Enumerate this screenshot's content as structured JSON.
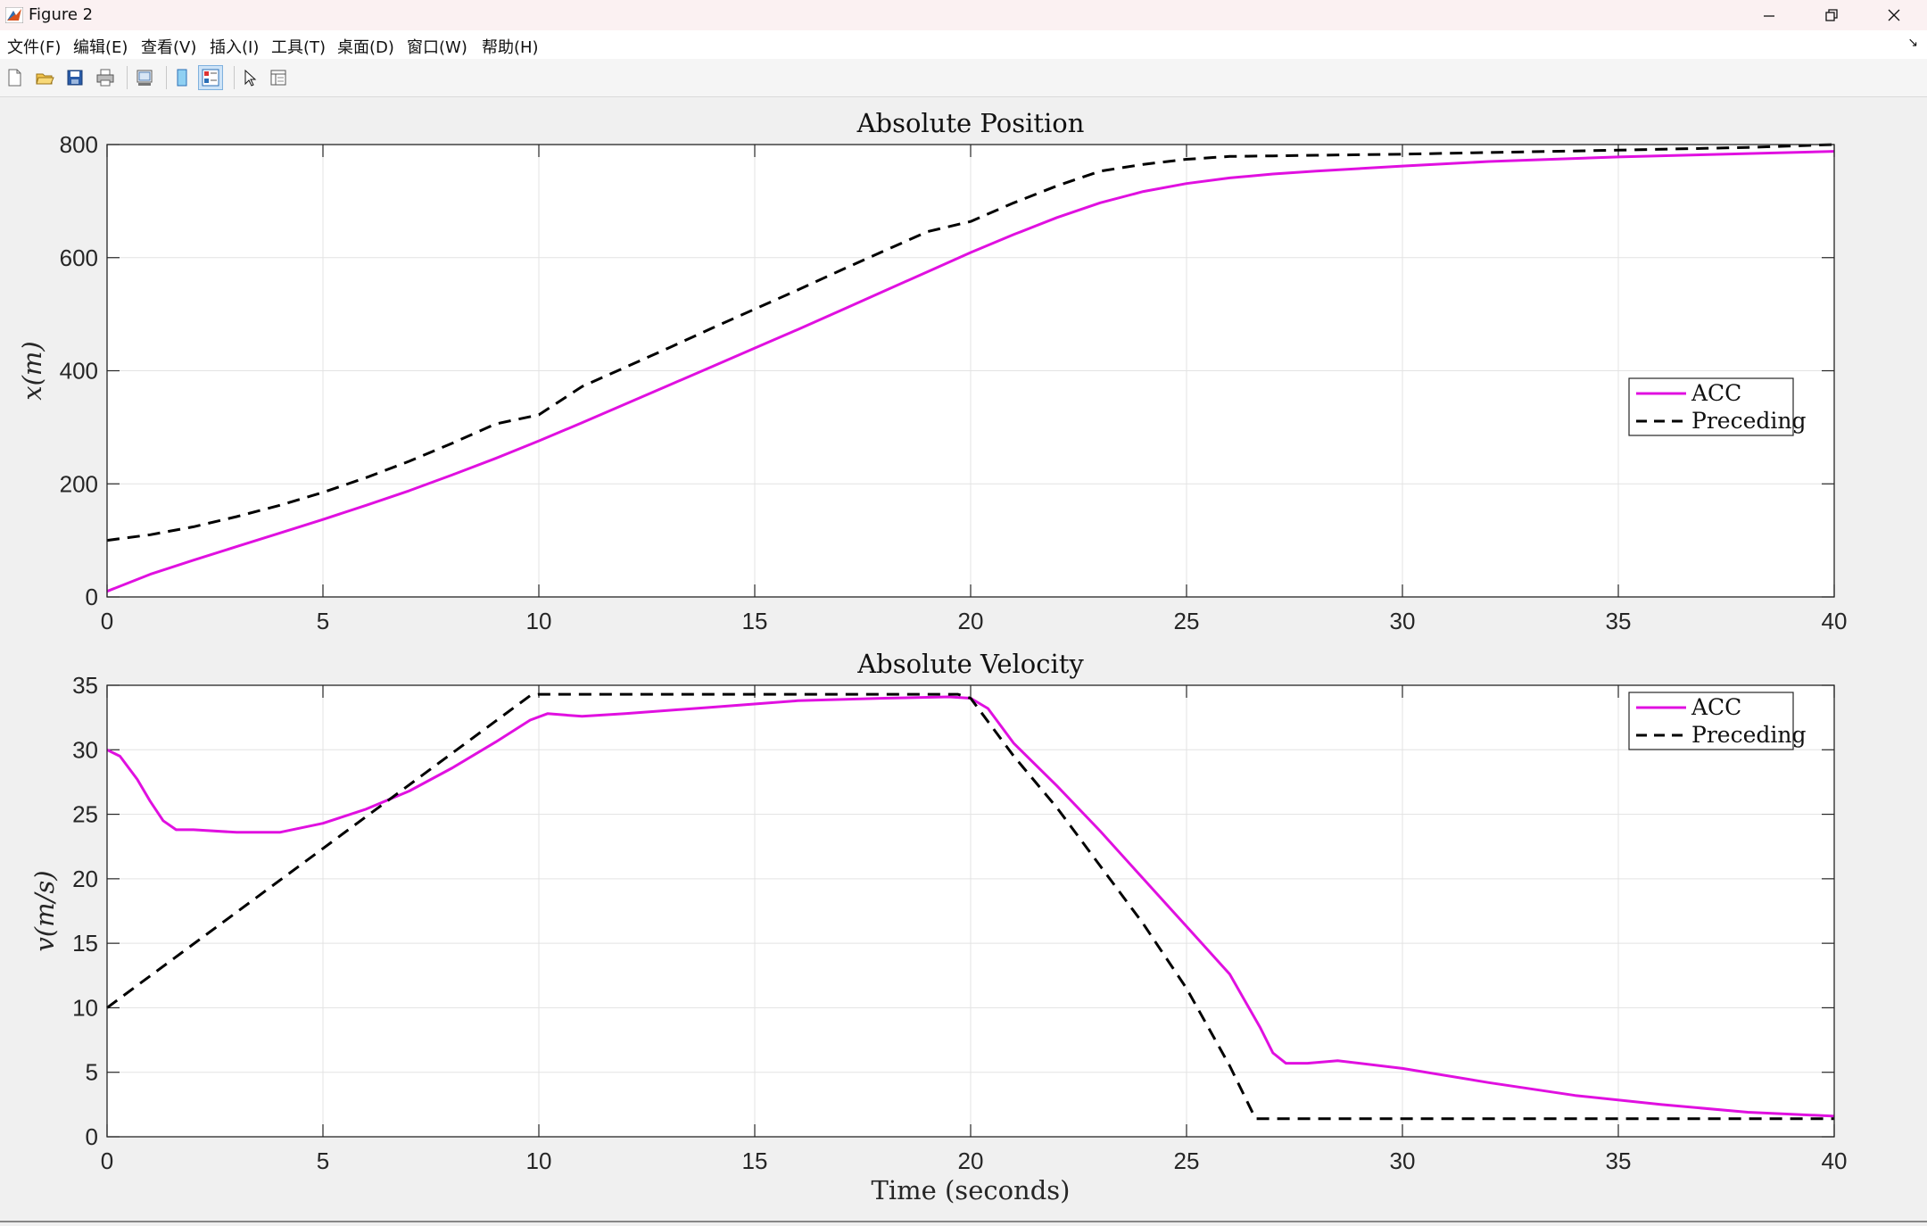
{
  "window": {
    "title": "Figure 2"
  },
  "menu": [
    "文件(F)",
    "编辑(E)",
    "查看(V)",
    "插入(I)",
    "工具(T)",
    "桌面(D)",
    "窗口(W)",
    "帮助(H)"
  ],
  "toolbar": {
    "icons": [
      "new-figure-icon",
      "open-file-icon",
      "save-icon",
      "print-icon",
      "link-plot-icon",
      "hide-plot-tools-icon",
      "show-plot-tools-icon",
      "edit-plot-icon",
      "property-inspector-icon"
    ]
  },
  "colors": {
    "acc": "#e010e0",
    "preceding": "#000000"
  },
  "chart_data": [
    {
      "type": "line",
      "title": "Absolute Position",
      "xlabel": "",
      "ylabel": "x(m)",
      "xlim": [
        0,
        40
      ],
      "ylim": [
        0,
        800
      ],
      "xticks": [
        "0",
        "5",
        "10",
        "15",
        "20",
        "25",
        "30",
        "35",
        "40"
      ],
      "yticks": [
        "0",
        "200",
        "400",
        "600",
        "800"
      ],
      "grid": true,
      "legend_position": "right-center",
      "series": [
        {
          "name": "ACC",
          "style": "solid",
          "color": "#e010e0",
          "x": [
            0,
            1,
            2,
            3,
            4,
            5,
            6,
            7,
            8,
            9,
            10,
            11,
            12,
            13,
            14,
            15,
            16,
            17,
            18,
            19,
            20,
            21,
            22,
            23,
            24,
            25,
            26,
            27,
            28,
            30,
            32,
            35,
            38,
            40
          ],
          "y": [
            10,
            40,
            65,
            89,
            113,
            137,
            162,
            188,
            216,
            245,
            276,
            308,
            341,
            374,
            407,
            440,
            473,
            507,
            541,
            575,
            609,
            641,
            671,
            697,
            717,
            731,
            741,
            748,
            753,
            762,
            770,
            778,
            784,
            788
          ]
        },
        {
          "name": "Preceding",
          "style": "dashed",
          "color": "#000000",
          "x": [
            0,
            1,
            2,
            3,
            4,
            5,
            6,
            7,
            8,
            9,
            10,
            11,
            12,
            13,
            14,
            15,
            16,
            17,
            18,
            19,
            20,
            21,
            22,
            23,
            24,
            25,
            26,
            27,
            28,
            30,
            32,
            35,
            38,
            40
          ],
          "y": [
            100,
            110,
            124,
            142,
            162,
            185,
            211,
            240,
            272,
            306,
            322,
            372,
            406,
            440,
            475,
            509,
            543,
            578,
            612,
            646,
            664,
            697,
            727,
            753,
            765,
            774,
            779,
            780,
            781,
            783,
            786,
            790,
            795,
            800
          ]
        }
      ]
    },
    {
      "type": "line",
      "title": "Absolute Velocity",
      "xlabel": "Time (seconds)",
      "ylabel": "v(m/s)",
      "xlim": [
        0,
        40
      ],
      "ylim": [
        0,
        35
      ],
      "xticks": [
        "0",
        "5",
        "10",
        "15",
        "20",
        "25",
        "30",
        "35",
        "40"
      ],
      "yticks": [
        "0",
        "5",
        "10",
        "15",
        "20",
        "25",
        "30",
        "35"
      ],
      "grid": true,
      "legend_position": "top-right",
      "series": [
        {
          "name": "ACC",
          "style": "solid",
          "color": "#e010e0",
          "x": [
            0,
            0.3,
            0.7,
            1,
            1.3,
            1.6,
            2,
            3,
            4,
            5,
            6,
            7,
            8,
            9,
            9.8,
            10.2,
            10.6,
            11,
            12,
            14,
            16,
            18,
            19.5,
            20,
            20.4,
            21,
            22,
            23,
            24,
            25,
            26,
            26.7,
            27,
            27.3,
            27.8,
            28.5,
            30,
            32,
            34,
            36,
            38,
            40
          ],
          "y": [
            30,
            29.5,
            27.7,
            26,
            24.5,
            23.8,
            23.8,
            23.6,
            23.6,
            24.3,
            25.4,
            26.8,
            28.6,
            30.6,
            32.3,
            32.8,
            32.7,
            32.6,
            32.8,
            33.3,
            33.8,
            34.0,
            34.1,
            34.0,
            33.2,
            30.5,
            27.2,
            23.7,
            20,
            16.3,
            12.6,
            8.5,
            6.5,
            5.7,
            5.7,
            5.9,
            5.3,
            4.2,
            3.2,
            2.5,
            1.9,
            1.6
          ]
        },
        {
          "name": "Preceding",
          "style": "dashed",
          "color": "#000000",
          "x": [
            0,
            9.8,
            10,
            19.7,
            20,
            21,
            22,
            23,
            24,
            25,
            26,
            26.6,
            27,
            30,
            35,
            40
          ],
          "y": [
            10,
            34.2,
            34.3,
            34.3,
            34,
            29.5,
            25.5,
            21,
            16.5,
            11.5,
            5.5,
            1.4,
            1.4,
            1.4,
            1.4,
            1.4
          ]
        }
      ]
    }
  ]
}
